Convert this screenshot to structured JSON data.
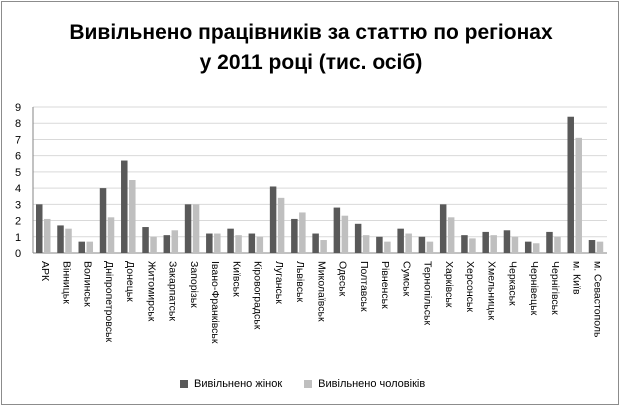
{
  "chart_data": {
    "type": "bar",
    "title_line1": "Вивільнено працівників за статтю по регіонах",
    "title_line2": "у 2011 році (тис. осіб)",
    "xlabel": "",
    "ylabel": "",
    "ylim": [
      0,
      9
    ],
    "yticks": [
      "0",
      "1",
      "2",
      "3",
      "4",
      "5",
      "6",
      "7",
      "8",
      "9"
    ],
    "grid": true,
    "legend_position": "bottom",
    "categories": [
      "АРК",
      "Вінницьк",
      "Волинськ",
      "Дніпропетровськ",
      "Донецьк",
      "Житомирськ",
      "Закарпатськ",
      "Запорізьк",
      "Івано-Франківськ",
      "Київськ",
      "Кіровоградськ",
      "Луганськ",
      "Львівськ",
      "Миколаївськ",
      "Одеськ",
      "Полтавськ",
      "Рівненськ",
      "Сумськ",
      "Тернопільськ",
      "Харківськ",
      "Херсонськ",
      "Хмельницьк",
      "Черкаськ",
      "Чернівецьк",
      "Чернігівськ",
      "м. Київ",
      "м. Севастополь"
    ],
    "series": [
      {
        "name": "Вивільнено жінок",
        "color": "#595959",
        "values": [
          3.0,
          1.7,
          0.7,
          4.0,
          5.7,
          1.6,
          1.1,
          3.0,
          1.2,
          1.5,
          1.2,
          4.1,
          2.1,
          1.2,
          2.8,
          1.8,
          1.0,
          1.5,
          1.0,
          3.0,
          1.1,
          1.3,
          1.4,
          0.7,
          1.3,
          8.4,
          0.8
        ]
      },
      {
        "name": "Вивільнено чоловіків",
        "color": "#bfbfbf",
        "values": [
          2.1,
          1.5,
          0.7,
          2.2,
          4.5,
          1.0,
          1.4,
          3.0,
          1.2,
          1.1,
          1.0,
          3.4,
          2.5,
          0.8,
          2.3,
          1.1,
          0.7,
          1.2,
          0.7,
          2.2,
          0.9,
          1.1,
          1.0,
          0.6,
          1.0,
          7.1,
          0.7
        ]
      }
    ]
  }
}
